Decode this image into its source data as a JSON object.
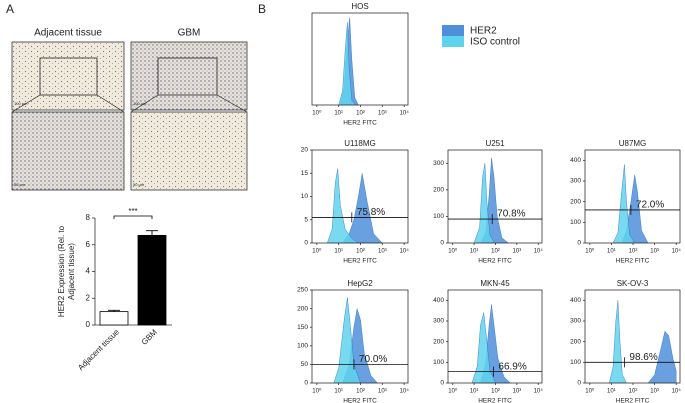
{
  "panel_a": {
    "label": "A",
    "images": [
      {
        "title": "Adjacent tissue"
      },
      {
        "title": "GBM"
      }
    ],
    "scale_bars": [
      "100 μm",
      "50 μm"
    ]
  },
  "panel_b": {
    "label": "B"
  },
  "legend": {
    "items": [
      {
        "name": "HER2",
        "color": "#4f8fd9"
      },
      {
        "name": "ISO control",
        "color": "#5fd3ee"
      }
    ]
  },
  "chart_data": [
    {
      "type": "bar",
      "ylabel": [
        "HER2 Expression (Rel. to",
        "Adjacent tissue)"
      ],
      "categories": [
        "Adjacent tissue",
        "GBM"
      ],
      "values": [
        1,
        6.7
      ],
      "errors": [
        0.1,
        0.35
      ],
      "colors": [
        "#ffffff",
        "#000000"
      ],
      "ylim": [
        0,
        8
      ],
      "yticks": [
        0,
        2,
        4,
        6,
        8
      ],
      "annotation": "***"
    },
    {
      "type": "area",
      "title": "HOS",
      "xlabel": "HER2 FITC",
      "xscale": "log",
      "xlim": [
        0.6,
        15000
      ],
      "ylim": [
        0,
        100
      ],
      "xticks": [
        {
          "value": 1,
          "label": "10⁰"
        },
        {
          "value": 10,
          "label": "10¹"
        },
        {
          "value": 100,
          "label": "10²"
        },
        {
          "value": 1000,
          "label": "10³"
        },
        {
          "value": 10000,
          "label": "10⁴"
        }
      ],
      "series": [
        {
          "x": [
            12,
            18,
            25,
            32,
            40,
            55,
            80
          ],
          "values": [
            0,
            20,
            70,
            95,
            50,
            8,
            0
          ]
        },
        {
          "x": [
            10,
            15,
            20,
            25,
            30,
            40,
            60
          ],
          "values": [
            0,
            15,
            60,
            90,
            40,
            5,
            0
          ]
        }
      ]
    },
    {
      "type": "area",
      "title": "U118MG",
      "xlabel": "HER2 FITC",
      "xscale": "log",
      "xlim": [
        0.6,
        15000
      ],
      "ylim": [
        0,
        20
      ],
      "yticks": [
        0,
        5,
        10,
        15,
        20
      ],
      "xticks": [
        {
          "value": 1,
          "label": "10⁰"
        },
        {
          "value": 10,
          "label": "10¹"
        },
        {
          "value": 100,
          "label": "10²"
        },
        {
          "value": 1000,
          "label": "10³"
        },
        {
          "value": 10000,
          "label": "10⁴"
        }
      ],
      "series": [
        {
          "x": [
            15,
            30,
            50,
            80,
            120,
            200,
            400,
            1000
          ],
          "values": [
            0,
            2,
            5,
            10,
            15,
            9,
            2,
            0
          ]
        },
        {
          "x": [
            3,
            5,
            7,
            9,
            12,
            20,
            40,
            80
          ],
          "values": [
            0,
            3,
            13,
            16,
            8,
            3,
            1,
            0
          ]
        }
      ],
      "gate": {
        "x": 40,
        "y": 5.5,
        "label": "75.8%"
      }
    },
    {
      "type": "area",
      "title": "U251",
      "xlabel": "HER2 FITC",
      "xscale": "log",
      "xlim": [
        0.6,
        15000
      ],
      "ylim": [
        0,
        350
      ],
      "yticks": [
        0,
        100,
        200,
        300
      ],
      "xticks": [
        {
          "value": 1,
          "label": "10⁰"
        },
        {
          "value": 10,
          "label": "10¹"
        },
        {
          "value": 100,
          "label": "10²"
        },
        {
          "value": 1000,
          "label": "10³"
        },
        {
          "value": 10000,
          "label": "10⁴"
        }
      ],
      "series": [
        {
          "x": [
            20,
            35,
            50,
            65,
            85,
            120,
            200,
            400
          ],
          "values": [
            0,
            40,
            180,
            320,
            250,
            100,
            20,
            0
          ]
        },
        {
          "x": [
            10,
            18,
            25,
            32,
            40,
            55,
            90
          ],
          "values": [
            0,
            60,
            250,
            300,
            150,
            30,
            0
          ]
        }
      ],
      "gate": {
        "x": 70,
        "y": 90,
        "label": "70.8%"
      }
    },
    {
      "type": "area",
      "title": "U87MG",
      "xlabel": "HER2 FITC",
      "xscale": "log",
      "xlim": [
        0.6,
        15000
      ],
      "ylim": [
        0,
        450
      ],
      "yticks": [
        0,
        100,
        200,
        300,
        400
      ],
      "xticks": [
        {
          "value": 1,
          "label": "10⁰"
        },
        {
          "value": 10,
          "label": "10¹"
        },
        {
          "value": 100,
          "label": "10²"
        },
        {
          "value": 1000,
          "label": "10³"
        },
        {
          "value": 10000,
          "label": "10⁴"
        }
      ],
      "series": [
        {
          "x": [
            30,
            50,
            80,
            120,
            160,
            250,
            500
          ],
          "values": [
            0,
            60,
            200,
            330,
            250,
            60,
            0
          ]
        },
        {
          "x": [
            12,
            20,
            30,
            40,
            50,
            70,
            120
          ],
          "values": [
            0,
            50,
            250,
            380,
            200,
            40,
            0
          ]
        }
      ],
      "gate": {
        "x": 80,
        "y": 160,
        "label": "72.0%"
      }
    },
    {
      "type": "area",
      "title": "HepG2",
      "xlabel": "HER2 FITC",
      "xscale": "log",
      "xlim": [
        0.6,
        15000
      ],
      "ylim": [
        0,
        250
      ],
      "yticks": [
        0,
        50,
        100,
        150,
        200,
        250
      ],
      "xticks": [
        {
          "value": 1,
          "label": "10⁰"
        },
        {
          "value": 10,
          "label": "10¹"
        },
        {
          "value": 100,
          "label": "10²"
        },
        {
          "value": 1000,
          "label": "10³"
        },
        {
          "value": 10000,
          "label": "10⁴"
        }
      ],
      "series": [
        {
          "x": [
            15,
            30,
            50,
            70,
            100,
            150,
            300,
            600
          ],
          "values": [
            0,
            50,
            150,
            200,
            170,
            80,
            20,
            0
          ]
        },
        {
          "x": [
            6,
            10,
            18,
            25,
            35,
            50,
            100
          ],
          "values": [
            0,
            40,
            170,
            230,
            150,
            50,
            0
          ]
        }
      ],
      "gate": {
        "x": 50,
        "y": 50,
        "label": "70.0%"
      }
    },
    {
      "type": "area",
      "title": "MKN-45",
      "xlabel": "HER2 FITC",
      "xscale": "log",
      "xlim": [
        0.6,
        15000
      ],
      "ylim": [
        0,
        450
      ],
      "yticks": [
        0,
        100,
        200,
        300,
        400
      ],
      "xticks": [
        {
          "value": 1,
          "label": "10⁰"
        },
        {
          "value": 10,
          "label": "10¹"
        },
        {
          "value": 100,
          "label": "10²"
        },
        {
          "value": 1000,
          "label": "10³"
        },
        {
          "value": 10000,
          "label": "10⁴"
        }
      ],
      "series": [
        {
          "x": [
            20,
            35,
            50,
            65,
            90,
            130,
            250,
            500
          ],
          "values": [
            0,
            100,
            280,
            380,
            260,
            120,
            30,
            0
          ]
        },
        {
          "x": [
            8,
            14,
            20,
            28,
            38,
            55,
            100
          ],
          "values": [
            0,
            80,
            280,
            340,
            220,
            60,
            0
          ]
        }
      ],
      "gate": {
        "x": 80,
        "y": 55,
        "label": "66.9%"
      }
    },
    {
      "type": "area",
      "title": "SK-OV-3",
      "xlabel": "HER2 FITC",
      "xscale": "log",
      "xlim": [
        0.6,
        15000
      ],
      "ylim": [
        0,
        450
      ],
      "yticks": [
        0,
        100,
        200,
        300,
        400
      ],
      "xticks": [
        {
          "value": 1,
          "label": "10⁰"
        },
        {
          "value": 10,
          "label": "10¹"
        },
        {
          "value": 100,
          "label": "10²"
        },
        {
          "value": 1000,
          "label": "10³"
        },
        {
          "value": 10000,
          "label": "10⁴"
        }
      ],
      "series": [
        {
          "x": [
            500,
            1000,
            1800,
            3000,
            4500,
            7000,
            10000
          ],
          "values": [
            0,
            40,
            150,
            250,
            230,
            120,
            60
          ]
        },
        {
          "x": [
            8,
            12,
            16,
            20,
            25,
            32,
            50
          ],
          "values": [
            0,
            80,
            300,
            400,
            200,
            40,
            0
          ]
        }
      ],
      "gate": {
        "x": 40,
        "y": 100,
        "label": "98.6%"
      }
    }
  ]
}
